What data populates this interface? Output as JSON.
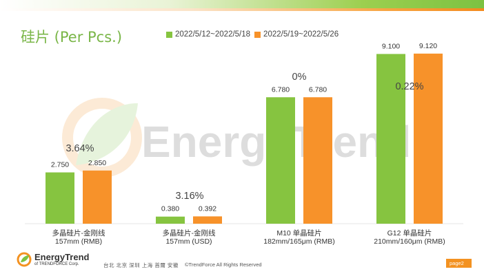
{
  "page": {
    "title": "硅片 (Per Pcs.)",
    "watermark": "EnergyTrend",
    "footer_logo_main": "EnergyTrend",
    "footer_logo_sub": "of TRENDFORCE Corp.",
    "footer_cities": "台北 北京 深圳 上海 首爾 安徽",
    "footer_copyright": "©TrendForce All Rights Reserved",
    "page_label": "page2"
  },
  "colors": {
    "series1": "#86c440",
    "series2": "#f7922a",
    "title": "#7ab648"
  },
  "chart_data": {
    "type": "bar",
    "categories": [
      [
        "多晶硅片-金刚线",
        "157mm (RMB)"
      ],
      [
        "多晶硅片-金刚线",
        "157mm (USD)"
      ],
      [
        "M10 单晶硅片",
        "182mm/165μm (RMB)"
      ],
      [
        "G12 单晶硅片",
        "210mm/160μm  (RMB)"
      ]
    ],
    "series": [
      {
        "name": "2022/5/12~2022/5/18",
        "values": [
          2.75,
          0.38,
          6.78,
          9.1
        ],
        "labels": [
          "2.750",
          "0.380",
          "6.780",
          "9.100"
        ]
      },
      {
        "name": "2022/5/19~2022/5/26",
        "values": [
          2.85,
          0.392,
          6.78,
          9.12
        ],
        "labels": [
          "2.850",
          "0.392",
          "6.780",
          "9.120"
        ]
      }
    ],
    "annotations": [
      "3.64%",
      "3.16%",
      "0%",
      "0.22%"
    ],
    "ylim": [
      0,
      10
    ],
    "grid": false,
    "legend": "top"
  }
}
